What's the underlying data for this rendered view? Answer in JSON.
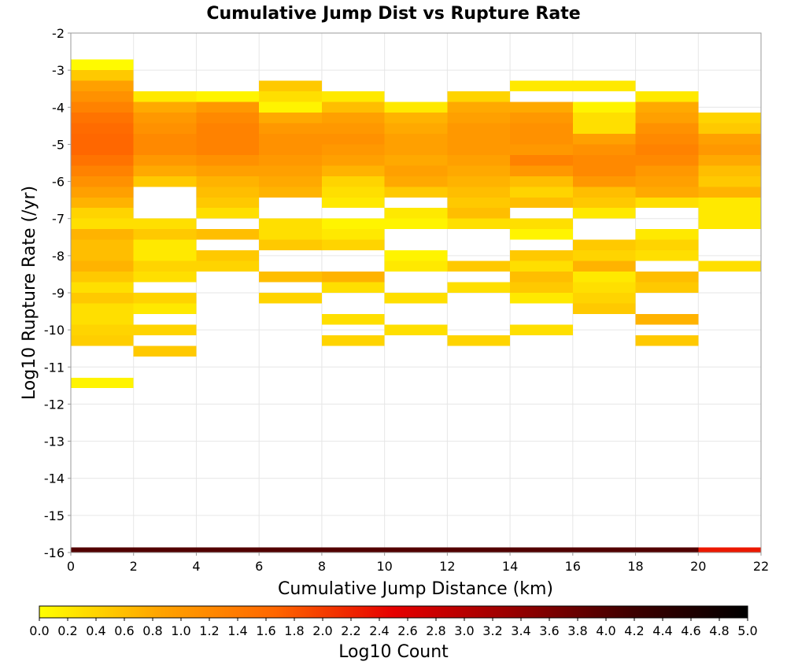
{
  "chart_data": {
    "type": "heatmap",
    "title": "Cumulative Jump Dist vs Rupture Rate",
    "xlabel": "Cumulative Jump Distance (km)",
    "ylabel": "Log10 Rupture Rate (/yr)",
    "xlim": [
      0,
      22
    ],
    "ylim": [
      -16,
      -2
    ],
    "x_ticks": [
      0,
      2,
      4,
      6,
      8,
      10,
      12,
      14,
      16,
      18,
      20,
      22
    ],
    "y_ticks": [
      -2,
      -3,
      -4,
      -5,
      -6,
      -7,
      -8,
      -9,
      -10,
      -11,
      -12,
      -13,
      -14,
      -15,
      -16
    ],
    "grid": true,
    "x_bin_width": 2,
    "y_bin_height": 0.2857,
    "value_label": "Log10 Count",
    "colorbar": {
      "label": "Log10 Count",
      "min": 0.0,
      "max": 5.0,
      "ticks": [
        "0.0",
        "0.2",
        "0.4",
        "0.6",
        "0.8",
        "1.0",
        "1.2",
        "1.4",
        "1.6",
        "1.8",
        "2.0",
        "2.2",
        "2.4",
        "2.6",
        "2.8",
        "3.0",
        "3.2",
        "3.4",
        "3.6",
        "3.8",
        "4.0",
        "4.2",
        "4.4",
        "4.6",
        "4.8",
        "5.0"
      ],
      "colors": [
        "#ffff00",
        "#ffa500",
        "#ff6600",
        "#e60000",
        "#990000",
        "#400000",
        "#000000"
      ],
      "placement": "bottom"
    },
    "columns": [
      {
        "x": [
          0,
          2
        ],
        "cells": [
          [
            -2.857,
            0.05
          ],
          [
            -3.143,
            0.5
          ],
          [
            -3.429,
            0.9
          ],
          [
            -3.714,
            1.1
          ],
          [
            -4.0,
            1.3
          ],
          [
            -4.286,
            1.5
          ],
          [
            -4.571,
            1.6
          ],
          [
            -4.857,
            1.65
          ],
          [
            -5.143,
            1.65
          ],
          [
            -5.429,
            1.5
          ],
          [
            -5.714,
            1.3
          ],
          [
            -6.0,
            1.1
          ],
          [
            -6.286,
            0.9
          ],
          [
            -6.571,
            0.7
          ],
          [
            -6.857,
            0.4
          ],
          [
            -7.143,
            0.3
          ],
          [
            -7.429,
            0.7
          ],
          [
            -7.714,
            0.6
          ],
          [
            -8.0,
            0.6
          ],
          [
            -8.286,
            0.7
          ],
          [
            -8.571,
            0.5
          ],
          [
            -8.857,
            0.3
          ],
          [
            -9.143,
            0.5
          ],
          [
            -9.429,
            0.3
          ],
          [
            -9.714,
            0.3
          ],
          [
            -10.0,
            0.4
          ],
          [
            -10.286,
            0.45
          ],
          [
            -11.429,
            0.1
          ],
          [
            -16.0,
            4.0
          ]
        ]
      },
      {
        "x": [
          2,
          4
        ],
        "cells": [
          [
            -3.714,
            0.2
          ],
          [
            -4.0,
            0.8
          ],
          [
            -4.286,
            1.0
          ],
          [
            -4.571,
            1.1
          ],
          [
            -4.857,
            1.2
          ],
          [
            -5.143,
            1.2
          ],
          [
            -5.429,
            1.0
          ],
          [
            -5.714,
            0.8
          ],
          [
            -6.0,
            0.5
          ],
          [
            -7.143,
            0.3
          ],
          [
            -7.429,
            0.5
          ],
          [
            -7.714,
            0.2
          ],
          [
            -8.0,
            0.2
          ],
          [
            -8.286,
            0.4
          ],
          [
            -8.571,
            0.3
          ],
          [
            -9.143,
            0.4
          ],
          [
            -9.429,
            0.2
          ],
          [
            -10.0,
            0.4
          ],
          [
            -10.571,
            0.5
          ],
          [
            -16.0,
            4.0
          ]
        ]
      },
      {
        "x": [
          4,
          6
        ],
        "cells": [
          [
            -3.714,
            0.1
          ],
          [
            -4.0,
            1.0
          ],
          [
            -4.286,
            1.2
          ],
          [
            -4.571,
            1.3
          ],
          [
            -4.857,
            1.3
          ],
          [
            -5.143,
            1.3
          ],
          [
            -5.429,
            1.1
          ],
          [
            -5.714,
            0.9
          ],
          [
            -6.0,
            0.7
          ],
          [
            -6.286,
            0.6
          ],
          [
            -6.571,
            0.5
          ],
          [
            -6.857,
            0.3
          ],
          [
            -7.429,
            0.6
          ],
          [
            -8.0,
            0.5
          ],
          [
            -8.286,
            0.4
          ],
          [
            -16.0,
            4.0
          ]
        ]
      },
      {
        "x": [
          6,
          8
        ],
        "cells": [
          [
            -3.429,
            0.5
          ],
          [
            -3.714,
            0.3
          ],
          [
            -4.0,
            0.1
          ],
          [
            -4.286,
            0.8
          ],
          [
            -4.571,
            1.0
          ],
          [
            -4.857,
            1.1
          ],
          [
            -5.143,
            1.1
          ],
          [
            -5.429,
            1.0
          ],
          [
            -5.714,
            0.9
          ],
          [
            -6.0,
            0.8
          ],
          [
            -6.286,
            0.7
          ],
          [
            -7.143,
            0.3
          ],
          [
            -7.429,
            0.3
          ],
          [
            -7.714,
            0.5
          ],
          [
            -8.571,
            0.6
          ],
          [
            -9.143,
            0.4
          ],
          [
            -16.0,
            4.0
          ]
        ]
      },
      {
        "x": [
          8,
          10
        ],
        "cells": [
          [
            -3.714,
            0.2
          ],
          [
            -4.0,
            0.6
          ],
          [
            -4.286,
            0.9
          ],
          [
            -4.571,
            1.0
          ],
          [
            -4.857,
            1.1
          ],
          [
            -5.143,
            1.0
          ],
          [
            -5.429,
            0.9
          ],
          [
            -5.714,
            0.7
          ],
          [
            -6.0,
            0.4
          ],
          [
            -6.286,
            0.3
          ],
          [
            -6.571,
            0.2
          ],
          [
            -7.143,
            0.1
          ],
          [
            -7.429,
            0.2
          ],
          [
            -7.714,
            0.4
          ],
          [
            -8.571,
            0.7
          ],
          [
            -8.857,
            0.3
          ],
          [
            -9.714,
            0.3
          ],
          [
            -10.286,
            0.4
          ],
          [
            -16.0,
            4.0
          ]
        ]
      },
      {
        "x": [
          10,
          12
        ],
        "cells": [
          [
            -4.0,
            0.2
          ],
          [
            -4.286,
            0.7
          ],
          [
            -4.571,
            0.8
          ],
          [
            -4.857,
            0.9
          ],
          [
            -5.143,
            0.9
          ],
          [
            -5.429,
            0.8
          ],
          [
            -5.714,
            0.9
          ],
          [
            -6.0,
            0.8
          ],
          [
            -6.286,
            0.5
          ],
          [
            -6.857,
            0.2
          ],
          [
            -7.143,
            0.1
          ],
          [
            -8.0,
            0.1
          ],
          [
            -8.286,
            0.2
          ],
          [
            -9.143,
            0.3
          ],
          [
            -10.0,
            0.3
          ],
          [
            -16.0,
            4.0
          ]
        ]
      },
      {
        "x": [
          12,
          14
        ],
        "cells": [
          [
            -3.714,
            0.4
          ],
          [
            -4.0,
            0.8
          ],
          [
            -4.286,
            0.9
          ],
          [
            -4.571,
            1.0
          ],
          [
            -4.857,
            1.0
          ],
          [
            -5.143,
            1.0
          ],
          [
            -5.429,
            0.9
          ],
          [
            -5.714,
            0.8
          ],
          [
            -6.0,
            0.7
          ],
          [
            -6.286,
            0.6
          ],
          [
            -6.571,
            0.5
          ],
          [
            -6.857,
            0.6
          ],
          [
            -7.143,
            0.3
          ],
          [
            -8.286,
            0.5
          ],
          [
            -8.857,
            0.3
          ],
          [
            -10.286,
            0.4
          ],
          [
            -16.0,
            4.0
          ]
        ]
      },
      {
        "x": [
          14,
          16
        ],
        "cells": [
          [
            -3.429,
            0.2
          ],
          [
            -4.0,
            0.8
          ],
          [
            -4.286,
            1.0
          ],
          [
            -4.571,
            1.1
          ],
          [
            -4.857,
            1.1
          ],
          [
            -5.143,
            1.0
          ],
          [
            -5.429,
            1.3
          ],
          [
            -5.714,
            1.0
          ],
          [
            -6.0,
            0.6
          ],
          [
            -6.286,
            0.4
          ],
          [
            -6.571,
            0.6
          ],
          [
            -7.143,
            0.3
          ],
          [
            -7.429,
            0.1
          ],
          [
            -8.0,
            0.5
          ],
          [
            -8.286,
            0.3
          ],
          [
            -8.571,
            0.6
          ],
          [
            -8.857,
            0.5
          ],
          [
            -9.143,
            0.2
          ],
          [
            -10.0,
            0.3
          ],
          [
            -16.0,
            4.0
          ]
        ]
      },
      {
        "x": [
          16,
          18
        ],
        "cells": [
          [
            -3.429,
            0.2
          ],
          [
            -4.0,
            0.1
          ],
          [
            -4.286,
            0.3
          ],
          [
            -4.571,
            0.3
          ],
          [
            -4.857,
            0.9
          ],
          [
            -5.143,
            1.1
          ],
          [
            -5.429,
            1.2
          ],
          [
            -5.714,
            1.2
          ],
          [
            -6.0,
            1.0
          ],
          [
            -6.286,
            0.6
          ],
          [
            -6.571,
            0.5
          ],
          [
            -6.857,
            0.2
          ],
          [
            -7.714,
            0.5
          ],
          [
            -8.0,
            0.4
          ],
          [
            -8.286,
            0.7
          ],
          [
            -8.571,
            0.2
          ],
          [
            -8.857,
            0.3
          ],
          [
            -9.143,
            0.4
          ],
          [
            -9.429,
            0.5
          ],
          [
            -16.0,
            4.0
          ]
        ]
      },
      {
        "x": [
          18,
          20
        ],
        "cells": [
          [
            -3.714,
            0.2
          ],
          [
            -4.0,
            0.8
          ],
          [
            -4.286,
            0.9
          ],
          [
            -4.571,
            1.1
          ],
          [
            -4.857,
            1.2
          ],
          [
            -5.143,
            1.3
          ],
          [
            -5.429,
            1.2
          ],
          [
            -5.714,
            1.0
          ],
          [
            -6.0,
            0.9
          ],
          [
            -6.286,
            0.8
          ],
          [
            -6.571,
            0.3
          ],
          [
            -7.429,
            0.2
          ],
          [
            -7.714,
            0.4
          ],
          [
            -8.0,
            0.3
          ],
          [
            -8.571,
            0.6
          ],
          [
            -8.857,
            0.5
          ],
          [
            -9.714,
            0.7
          ],
          [
            -10.286,
            0.5
          ],
          [
            -16.0,
            4.0
          ]
        ]
      },
      {
        "x": [
          20,
          22
        ],
        "cells": [
          [
            -4.286,
            0.4
          ],
          [
            -4.571,
            0.5
          ],
          [
            -4.857,
            0.9
          ],
          [
            -5.143,
            1.0
          ],
          [
            -5.429,
            0.8
          ],
          [
            -5.714,
            0.6
          ],
          [
            -6.0,
            0.5
          ],
          [
            -6.286,
            0.7
          ],
          [
            -6.571,
            0.2
          ],
          [
            -6.857,
            0.2
          ],
          [
            -7.143,
            0.2
          ],
          [
            -8.286,
            0.3
          ],
          [
            -16.0,
            2.3
          ]
        ]
      }
    ]
  }
}
